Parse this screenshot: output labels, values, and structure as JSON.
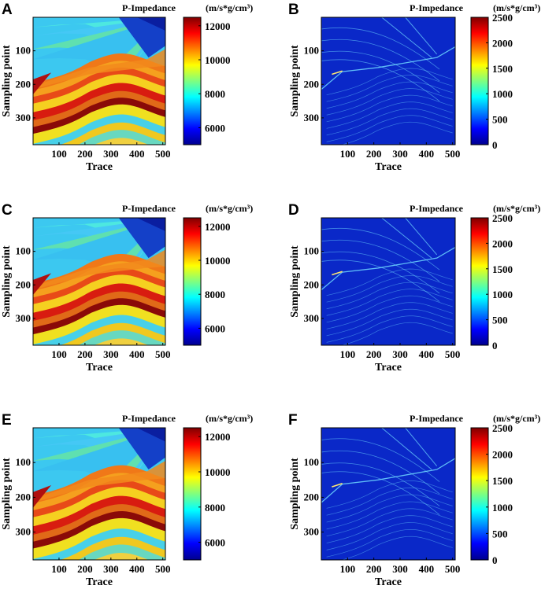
{
  "chart_data": [
    {
      "panel": "A",
      "type": "heatmap",
      "variant": "impedance",
      "xlabel": "Trace",
      "ylabel": "Sampling point",
      "xticks": [
        100,
        200,
        300,
        400,
        500
      ],
      "yticks": [
        100,
        200,
        300
      ],
      "xlim": [
        0,
        510
      ],
      "ylim": [
        0,
        380
      ],
      "colorbar": {
        "title": "P-Impedance",
        "unit": "(m/s*g/cm³)",
        "range": [
          5000,
          12500
        ],
        "ticks": [
          6000,
          8000,
          10000,
          12000
        ]
      }
    },
    {
      "panel": "B",
      "type": "heatmap",
      "variant": "error",
      "xlabel": "Trace",
      "ylabel": "Sampling point",
      "xticks": [
        100,
        200,
        300,
        400,
        500
      ],
      "yticks": [
        100,
        200,
        300
      ],
      "xlim": [
        0,
        510
      ],
      "ylim": [
        0,
        380
      ],
      "colorbar": {
        "title": "P-Impedance",
        "unit": "(m/s*g/cm³)",
        "range": [
          0,
          2500
        ],
        "ticks": [
          0,
          500,
          1000,
          1500,
          2000,
          2500
        ]
      }
    },
    {
      "panel": "C",
      "type": "heatmap",
      "variant": "impedance",
      "xlabel": "Trace",
      "ylabel": "Sampling point",
      "xticks": [
        100,
        200,
        300,
        400,
        500
      ],
      "yticks": [
        100,
        200,
        300
      ],
      "xlim": [
        0,
        510
      ],
      "ylim": [
        0,
        380
      ],
      "colorbar": {
        "title": "P-Impedance",
        "unit": "(m/s*g/cm³)",
        "range": [
          5000,
          12500
        ],
        "ticks": [
          6000,
          8000,
          10000,
          12000
        ]
      }
    },
    {
      "panel": "D",
      "type": "heatmap",
      "variant": "error",
      "xlabel": "Trace",
      "ylabel": "Sampling point",
      "xticks": [
        100,
        200,
        300,
        400,
        500
      ],
      "yticks": [
        100,
        200,
        300
      ],
      "xlim": [
        0,
        510
      ],
      "ylim": [
        0,
        380
      ],
      "colorbar": {
        "title": "P-Impedance",
        "unit": "(m/s*g/cm³)",
        "range": [
          0,
          2500
        ],
        "ticks": [
          0,
          500,
          1000,
          1500,
          2000,
          2500
        ]
      }
    },
    {
      "panel": "E",
      "type": "heatmap",
      "variant": "impedance",
      "xlabel": "Trace",
      "ylabel": "Sampling point",
      "xticks": [
        100,
        200,
        300,
        400,
        500
      ],
      "yticks": [
        100,
        200,
        300
      ],
      "xlim": [
        0,
        510
      ],
      "ylim": [
        0,
        380
      ],
      "colorbar": {
        "title": "P-Impedance",
        "unit": "(m/s*g/cm³)",
        "range": [
          5000,
          12500
        ],
        "ticks": [
          6000,
          8000,
          10000,
          12000
        ]
      }
    },
    {
      "panel": "F",
      "type": "heatmap",
      "variant": "error",
      "xlabel": "Trace",
      "ylabel": "Sampling point",
      "xticks": [
        100,
        200,
        300,
        400,
        500
      ],
      "yticks": [
        100,
        200,
        300
      ],
      "xlim": [
        0,
        510
      ],
      "ylim": [
        0,
        380
      ],
      "colorbar": {
        "title": "P-Impedance",
        "unit": "(m/s*g/cm³)",
        "range": [
          0,
          2500
        ],
        "ticks": [
          0,
          500,
          1000,
          1500,
          2000,
          2500
        ]
      }
    }
  ],
  "colors": {
    "jet": [
      "#00008f",
      "#0000ff",
      "#00ffff",
      "#ffff00",
      "#ff0000",
      "#800000"
    ],
    "error_background": "#0a28c8",
    "error_streak": "#6fd8ff"
  }
}
